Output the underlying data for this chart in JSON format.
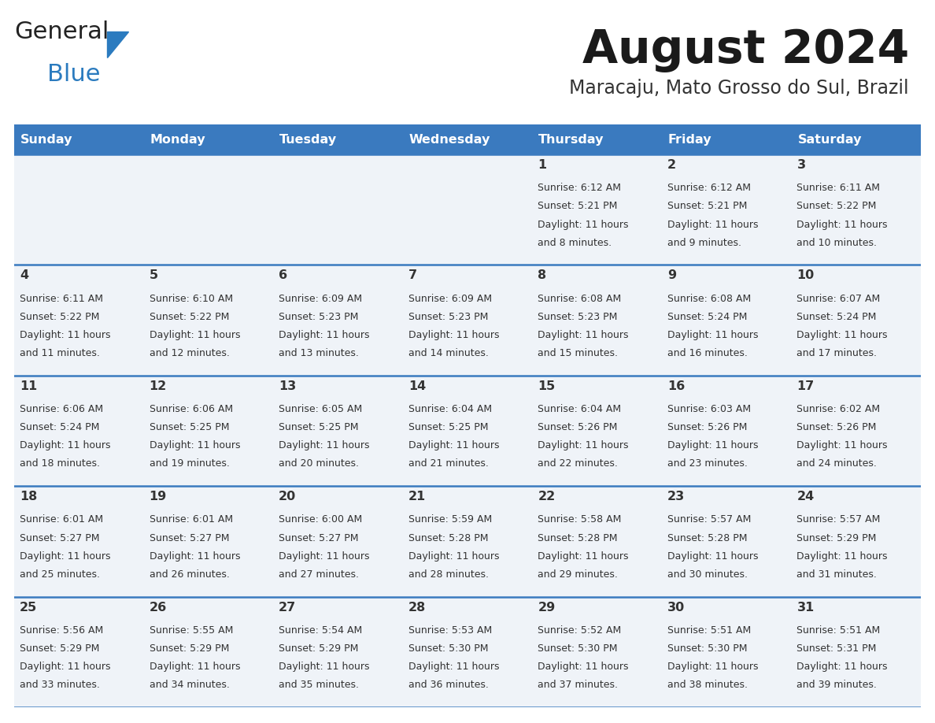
{
  "title": "August 2024",
  "subtitle": "Maracaju, Mato Grosso do Sul, Brazil",
  "header_color": "#3a7abf",
  "header_text_color": "#ffffff",
  "cell_bg_color": "#eff3f8",
  "border_color": "#3a7abf",
  "text_color": "#333333",
  "day_names": [
    "Sunday",
    "Monday",
    "Tuesday",
    "Wednesday",
    "Thursday",
    "Friday",
    "Saturday"
  ],
  "days": [
    {
      "day": 1,
      "col": 4,
      "row": 0,
      "sunrise": "6:12 AM",
      "sunset": "5:21 PM",
      "daylight_hours": 11,
      "daylight_minutes": 8
    },
    {
      "day": 2,
      "col": 5,
      "row": 0,
      "sunrise": "6:12 AM",
      "sunset": "5:21 PM",
      "daylight_hours": 11,
      "daylight_minutes": 9
    },
    {
      "day": 3,
      "col": 6,
      "row": 0,
      "sunrise": "6:11 AM",
      "sunset": "5:22 PM",
      "daylight_hours": 11,
      "daylight_minutes": 10
    },
    {
      "day": 4,
      "col": 0,
      "row": 1,
      "sunrise": "6:11 AM",
      "sunset": "5:22 PM",
      "daylight_hours": 11,
      "daylight_minutes": 11
    },
    {
      "day": 5,
      "col": 1,
      "row": 1,
      "sunrise": "6:10 AM",
      "sunset": "5:22 PM",
      "daylight_hours": 11,
      "daylight_minutes": 12
    },
    {
      "day": 6,
      "col": 2,
      "row": 1,
      "sunrise": "6:09 AM",
      "sunset": "5:23 PM",
      "daylight_hours": 11,
      "daylight_minutes": 13
    },
    {
      "day": 7,
      "col": 3,
      "row": 1,
      "sunrise": "6:09 AM",
      "sunset": "5:23 PM",
      "daylight_hours": 11,
      "daylight_minutes": 14
    },
    {
      "day": 8,
      "col": 4,
      "row": 1,
      "sunrise": "6:08 AM",
      "sunset": "5:23 PM",
      "daylight_hours": 11,
      "daylight_minutes": 15
    },
    {
      "day": 9,
      "col": 5,
      "row": 1,
      "sunrise": "6:08 AM",
      "sunset": "5:24 PM",
      "daylight_hours": 11,
      "daylight_minutes": 16
    },
    {
      "day": 10,
      "col": 6,
      "row": 1,
      "sunrise": "6:07 AM",
      "sunset": "5:24 PM",
      "daylight_hours": 11,
      "daylight_minutes": 17
    },
    {
      "day": 11,
      "col": 0,
      "row": 2,
      "sunrise": "6:06 AM",
      "sunset": "5:24 PM",
      "daylight_hours": 11,
      "daylight_minutes": 18
    },
    {
      "day": 12,
      "col": 1,
      "row": 2,
      "sunrise": "6:06 AM",
      "sunset": "5:25 PM",
      "daylight_hours": 11,
      "daylight_minutes": 19
    },
    {
      "day": 13,
      "col": 2,
      "row": 2,
      "sunrise": "6:05 AM",
      "sunset": "5:25 PM",
      "daylight_hours": 11,
      "daylight_minutes": 20
    },
    {
      "day": 14,
      "col": 3,
      "row": 2,
      "sunrise": "6:04 AM",
      "sunset": "5:25 PM",
      "daylight_hours": 11,
      "daylight_minutes": 21
    },
    {
      "day": 15,
      "col": 4,
      "row": 2,
      "sunrise": "6:04 AM",
      "sunset": "5:26 PM",
      "daylight_hours": 11,
      "daylight_minutes": 22
    },
    {
      "day": 16,
      "col": 5,
      "row": 2,
      "sunrise": "6:03 AM",
      "sunset": "5:26 PM",
      "daylight_hours": 11,
      "daylight_minutes": 23
    },
    {
      "day": 17,
      "col": 6,
      "row": 2,
      "sunrise": "6:02 AM",
      "sunset": "5:26 PM",
      "daylight_hours": 11,
      "daylight_minutes": 24
    },
    {
      "day": 18,
      "col": 0,
      "row": 3,
      "sunrise": "6:01 AM",
      "sunset": "5:27 PM",
      "daylight_hours": 11,
      "daylight_minutes": 25
    },
    {
      "day": 19,
      "col": 1,
      "row": 3,
      "sunrise": "6:01 AM",
      "sunset": "5:27 PM",
      "daylight_hours": 11,
      "daylight_minutes": 26
    },
    {
      "day": 20,
      "col": 2,
      "row": 3,
      "sunrise": "6:00 AM",
      "sunset": "5:27 PM",
      "daylight_hours": 11,
      "daylight_minutes": 27
    },
    {
      "day": 21,
      "col": 3,
      "row": 3,
      "sunrise": "5:59 AM",
      "sunset": "5:28 PM",
      "daylight_hours": 11,
      "daylight_minutes": 28
    },
    {
      "day": 22,
      "col": 4,
      "row": 3,
      "sunrise": "5:58 AM",
      "sunset": "5:28 PM",
      "daylight_hours": 11,
      "daylight_minutes": 29
    },
    {
      "day": 23,
      "col": 5,
      "row": 3,
      "sunrise": "5:57 AM",
      "sunset": "5:28 PM",
      "daylight_hours": 11,
      "daylight_minutes": 30
    },
    {
      "day": 24,
      "col": 6,
      "row": 3,
      "sunrise": "5:57 AM",
      "sunset": "5:29 PM",
      "daylight_hours": 11,
      "daylight_minutes": 31
    },
    {
      "day": 25,
      "col": 0,
      "row": 4,
      "sunrise": "5:56 AM",
      "sunset": "5:29 PM",
      "daylight_hours": 11,
      "daylight_minutes": 33
    },
    {
      "day": 26,
      "col": 1,
      "row": 4,
      "sunrise": "5:55 AM",
      "sunset": "5:29 PM",
      "daylight_hours": 11,
      "daylight_minutes": 34
    },
    {
      "day": 27,
      "col": 2,
      "row": 4,
      "sunrise": "5:54 AM",
      "sunset": "5:29 PM",
      "daylight_hours": 11,
      "daylight_minutes": 35
    },
    {
      "day": 28,
      "col": 3,
      "row": 4,
      "sunrise": "5:53 AM",
      "sunset": "5:30 PM",
      "daylight_hours": 11,
      "daylight_minutes": 36
    },
    {
      "day": 29,
      "col": 4,
      "row": 4,
      "sunrise": "5:52 AM",
      "sunset": "5:30 PM",
      "daylight_hours": 11,
      "daylight_minutes": 37
    },
    {
      "day": 30,
      "col": 5,
      "row": 4,
      "sunrise": "5:51 AM",
      "sunset": "5:30 PM",
      "daylight_hours": 11,
      "daylight_minutes": 38
    },
    {
      "day": 31,
      "col": 6,
      "row": 4,
      "sunrise": "5:51 AM",
      "sunset": "5:31 PM",
      "daylight_hours": 11,
      "daylight_minutes": 39
    }
  ]
}
